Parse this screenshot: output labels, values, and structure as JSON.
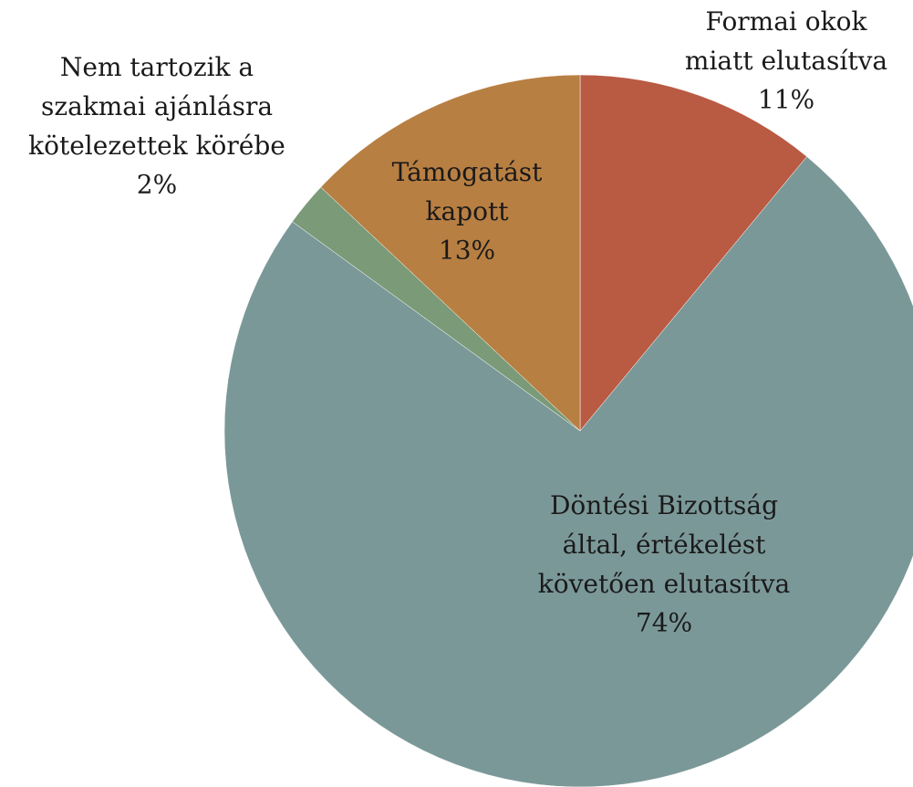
{
  "chart_data": {
    "type": "pie",
    "categories": [
      "Formai okok\nmiatt elutasítva",
      "Döntési Bizottság\náltal, értékelést\nkövetően elutasítva",
      "Nem tartozik a\nszakmai ajánlásra\nkötelezettek körébe",
      "Támogatást\nkapott"
    ],
    "values": [
      11,
      74,
      2,
      13
    ],
    "value_labels": [
      "11%",
      "74%",
      "2%",
      "13%"
    ],
    "colors": [
      "#b95a43",
      "#7b9898",
      "#7a9a78",
      "#b87f42"
    ]
  }
}
